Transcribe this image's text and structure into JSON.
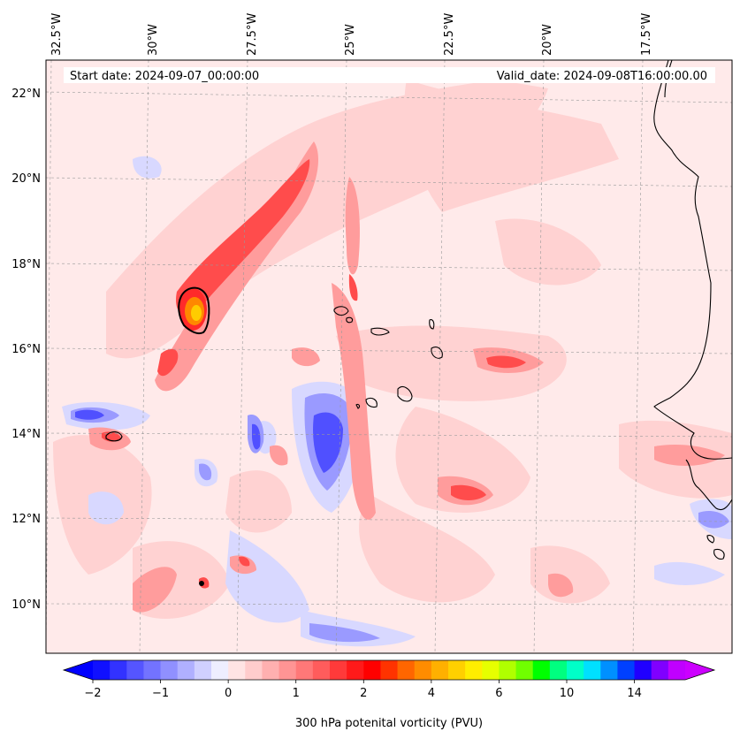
{
  "map": {
    "start_date": "Start date: 2024-09-07_00:00:00",
    "valid_date": "Valid_date: 2024-09-08T16:00:00.00",
    "lon_labels": [
      "32.5°W",
      "30°W",
      "27.5°W",
      "25°W",
      "22.5°W",
      "20°W",
      "17.5°W"
    ],
    "lat_labels": [
      "22°N",
      "20°N",
      "18°N",
      "16°N",
      "14°N",
      "12°N",
      "10°N"
    ]
  },
  "colorbar": {
    "label": "300 hPa potenital vorticity (PVU)",
    "tick_labels": [
      "−2",
      "−1",
      "0",
      "1",
      "2",
      "4",
      "6",
      "10",
      "14"
    ],
    "colors": [
      "#1010ff",
      "#3232ff",
      "#5555ff",
      "#7373ff",
      "#9090ff",
      "#b0b0ff",
      "#d0d0ff",
      "#eeeeff",
      "#ffe4e4",
      "#ffcccc",
      "#ffb0b0",
      "#ff9494",
      "#ff7878",
      "#ff5c5c",
      "#ff3a3a",
      "#ff1a1a",
      "#ff0000",
      "#ff3300",
      "#ff6600",
      "#ff8c00",
      "#ffb000",
      "#ffd000",
      "#ffee00",
      "#e6ff00",
      "#b0ff00",
      "#70ff00",
      "#00ff00",
      "#00ff80",
      "#00ffc8",
      "#00e0ff",
      "#0090ff",
      "#0040ff",
      "#2000ff",
      "#8000ff",
      "#c000ff"
    ],
    "min_color": "#0000ff",
    "max_color": "#cc00ff"
  },
  "colors": {
    "background": "#ffeaea",
    "light_blue": "#d0d0ff",
    "mid_blue": "#9090ff",
    "dark_blue": "#4444ff",
    "light_red": "#ffcccc",
    "mid_red": "#ff9494",
    "strong_red": "#ff4a4a",
    "orange": "#ff9900",
    "yellow": "#ffcc00",
    "coast": "#000000"
  }
}
